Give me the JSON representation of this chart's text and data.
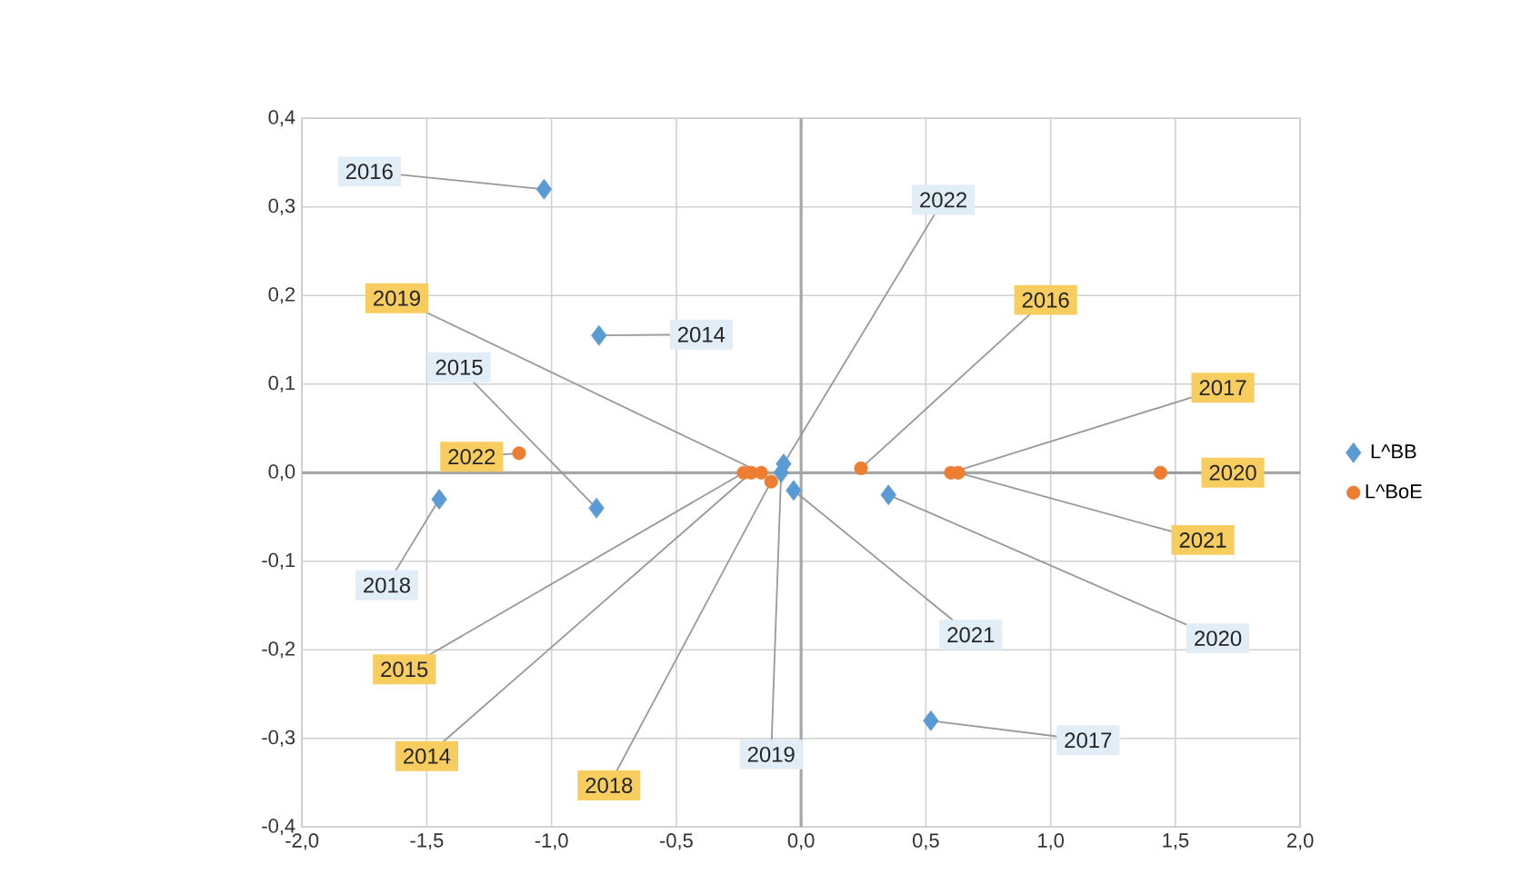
{
  "chart_data": {
    "type": "scatter",
    "series": [
      {
        "name": "L^BB",
        "color": "#5b9bd5",
        "marker": "diamond",
        "x": [
          -0.81,
          -0.82,
          -1.03,
          0.52,
          -1.45,
          -0.08,
          0.35,
          -0.03,
          -0.07
        ],
        "values": [
          0.155,
          -0.04,
          0.32,
          -0.28,
          -0.03,
          0.0,
          -0.025,
          -0.02,
          0.01
        ]
      },
      {
        "name": "L^BoE",
        "color": "#ed7d31",
        "marker": "circle",
        "x": [
          -0.2,
          -0.23,
          0.24,
          0.6,
          -0.12,
          -0.16,
          1.44,
          0.63,
          -1.13
        ],
        "values": [
          0.0,
          0.0,
          0.005,
          0.0,
          -0.01,
          0.0,
          0.0,
          0.0,
          0.022
        ]
      }
    ],
    "annotations": [
      {
        "text": "2014",
        "x": -0.81,
        "y": 0.155
      },
      {
        "text": "2015",
        "x": -0.82,
        "y": -0.04
      },
      {
        "text": "2016",
        "x": -1.03,
        "y": 0.32
      },
      {
        "text": "2017",
        "x": 0.52,
        "y": -0.28
      },
      {
        "text": "2018",
        "x": -1.45,
        "y": -0.03
      },
      {
        "text": "2019",
        "x": -0.08,
        "y": 0.0
      },
      {
        "text": "2020",
        "x": 0.35,
        "y": -0.025
      },
      {
        "text": "2021",
        "x": -0.03,
        "y": -0.02
      },
      {
        "text": "2022",
        "x": -0.07,
        "y": 0.01
      },
      {
        "text": "2014",
        "x": -0.2,
        "y": 0.0
      },
      {
        "text": "2015",
        "x": -0.23,
        "y": 0.0
      },
      {
        "text": "2016",
        "x": 0.24,
        "y": 0.005
      },
      {
        "text": "2017",
        "x": 0.6,
        "y": 0.0
      },
      {
        "text": "2018",
        "x": -0.12,
        "y": -0.01
      },
      {
        "text": "2019",
        "x": -0.16,
        "y": 0.0
      },
      {
        "text": "2020",
        "x": 1.44,
        "y": 0.0
      },
      {
        "text": "2021",
        "x": 0.63,
        "y": 0.0
      },
      {
        "text": "2022",
        "x": -1.13,
        "y": 0.022
      }
    ],
    "xlim": [
      -2.0,
      2.0
    ],
    "xticks": [
      {
        "value": -2.0,
        "label": "-2,0"
      },
      {
        "value": -1.5,
        "label": "-1,5"
      },
      {
        "value": -1.0,
        "label": "-1,0"
      },
      {
        "value": -0.5,
        "label": "-0,5"
      },
      {
        "value": 0.0,
        "label": "0,0"
      },
      {
        "value": 0.5,
        "label": "0,5"
      },
      {
        "value": 1.0,
        "label": "1,0"
      },
      {
        "value": 1.5,
        "label": "1,5"
      },
      {
        "value": 2.0,
        "label": "2,0"
      }
    ],
    "ylim": [
      -0.4,
      0.4
    ],
    "yticks": [
      {
        "value": -0.4,
        "label": "-0,4"
      },
      {
        "value": -0.3,
        "label": "-0,3"
      },
      {
        "value": -0.2,
        "label": "-0,2"
      },
      {
        "value": -0.1,
        "label": "-0,1"
      },
      {
        "value": 0.0,
        "label": "0,0"
      },
      {
        "value": 0.1,
        "label": "0,1"
      },
      {
        "value": 0.2,
        "label": "0,2"
      },
      {
        "value": 0.3,
        "label": "0,3"
      },
      {
        "value": 0.4,
        "label": "0,4"
      }
    ],
    "grid": true,
    "legend": "right"
  }
}
